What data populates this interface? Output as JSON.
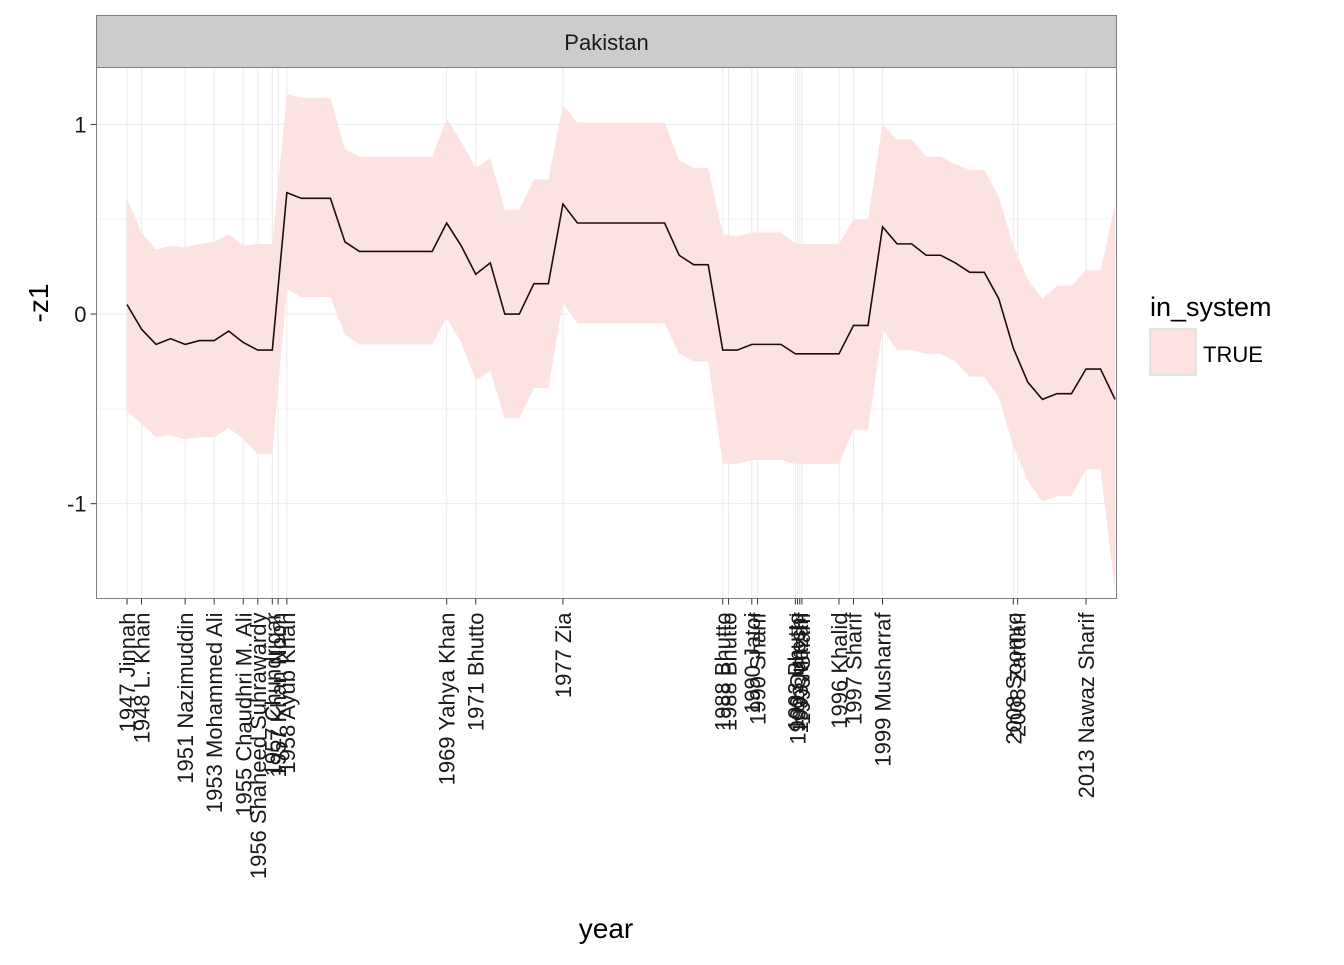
{
  "chart_data": {
    "type": "line",
    "facet_label": "Pakistan",
    "xlabel": "year",
    "ylabel": "-z1",
    "xlim": [
      1944.9,
      2015.1
    ],
    "ylim": [
      -1.5,
      1.3
    ],
    "y_ticks": [
      {
        "value": -1,
        "label": "-1"
      },
      {
        "value": 0,
        "label": "0"
      },
      {
        "value": 1,
        "label": "1"
      }
    ],
    "x_ticks": [
      {
        "year": 1947.0,
        "label": "1947 Jinnah"
      },
      {
        "year": 1948.0,
        "label": "1948 L. Khan"
      },
      {
        "year": 1951.0,
        "label": "1951 Nazimuddin"
      },
      {
        "year": 1953.0,
        "label": "1953 Mohammed Ali"
      },
      {
        "year": 1955.0,
        "label": "1955 Chaudhri M. Ali"
      },
      {
        "year": 1956.0,
        "label": "1956 Shaheed Suhrawardy"
      },
      {
        "year": 1957.0,
        "label": "1957 Chundrigar"
      },
      {
        "year": 1957.4,
        "label": "1957 Khan Noon"
      },
      {
        "year": 1958.0,
        "label": "1958 Ayub Khan"
      },
      {
        "year": 1969.0,
        "label": "1969 Yahya Khan"
      },
      {
        "year": 1971.0,
        "label": "1971 Bhutto"
      },
      {
        "year": 1977.0,
        "label": "1977 Zia"
      },
      {
        "year": 1988.0,
        "label": "1988 Bhutto"
      },
      {
        "year": 1988.4,
        "label": "1988 Bhutto"
      },
      {
        "year": 1990.0,
        "label": "1990 Jatoi"
      },
      {
        "year": 1990.4,
        "label": "1990 Sharif"
      },
      {
        "year": 1993.0,
        "label": "1993 Bhutto"
      },
      {
        "year": 1993.15,
        "label": "1993 Qureshi"
      },
      {
        "year": 1993.3,
        "label": "1993 Mazari"
      },
      {
        "year": 1993.45,
        "label": "1993 Sharif"
      },
      {
        "year": 1996.0,
        "label": "1996 Khalid"
      },
      {
        "year": 1997.0,
        "label": "1997 Sharif"
      },
      {
        "year": 1999.0,
        "label": "1999 Musharraf"
      },
      {
        "year": 2008.0,
        "label": "2008 Soomro"
      },
      {
        "year": 2008.3,
        "label": "2008 Zardari"
      },
      {
        "year": 2013.0,
        "label": "2013 Nawaz Sharif"
      }
    ],
    "series": [
      {
        "x": [
          1947,
          1948,
          1949,
          1950,
          1951,
          1952,
          1953,
          1954,
          1955,
          1956,
          1957,
          1958,
          1959,
          1960,
          1961,
          1962,
          1963,
          1964,
          1965,
          1966,
          1967,
          1968,
          1969,
          1970,
          1971,
          1972,
          1973,
          1974,
          1975,
          1976,
          1977,
          1978,
          1979,
          1980,
          1981,
          1982,
          1983,
          1984,
          1985,
          1986,
          1987,
          1988,
          1989,
          1990,
          1991,
          1992,
          1993,
          1994,
          1995,
          1996,
          1997,
          1998,
          1999,
          2000,
          2001,
          2002,
          2003,
          2004,
          2005,
          2006,
          2007,
          2008,
          2009,
          2010,
          2011,
          2012,
          2013,
          2014,
          2015
        ],
        "y": [
          0.05,
          -0.08,
          -0.16,
          -0.13,
          -0.16,
          -0.14,
          -0.14,
          -0.09,
          -0.15,
          -0.19,
          -0.19,
          0.64,
          0.61,
          0.61,
          0.61,
          0.38,
          0.33,
          0.33,
          0.33,
          0.33,
          0.33,
          0.33,
          0.48,
          0.36,
          0.21,
          0.27,
          0.0,
          0.0,
          0.16,
          0.16,
          0.58,
          0.48,
          0.48,
          0.48,
          0.48,
          0.48,
          0.48,
          0.48,
          0.31,
          0.26,
          0.26,
          -0.19,
          -0.19,
          -0.16,
          -0.16,
          -0.16,
          -0.21,
          -0.21,
          -0.21,
          -0.21,
          -0.06,
          -0.06,
          0.46,
          0.37,
          0.37,
          0.31,
          0.31,
          0.27,
          0.22,
          0.22,
          0.08,
          -0.18,
          -0.36,
          -0.45,
          -0.42,
          -0.42,
          -0.29,
          -0.29,
          -0.45
        ],
        "lower": [
          -0.51,
          -0.58,
          -0.65,
          -0.64,
          -0.66,
          -0.65,
          -0.65,
          -0.6,
          -0.66,
          -0.74,
          -0.74,
          0.13,
          0.09,
          0.09,
          0.09,
          -0.11,
          -0.16,
          -0.16,
          -0.16,
          -0.16,
          -0.16,
          -0.16,
          -0.02,
          -0.15,
          -0.35,
          -0.3,
          -0.55,
          -0.55,
          -0.39,
          -0.39,
          0.06,
          -0.05,
          -0.05,
          -0.05,
          -0.05,
          -0.05,
          -0.05,
          -0.05,
          -0.21,
          -0.25,
          -0.25,
          -0.79,
          -0.79,
          -0.77,
          -0.77,
          -0.77,
          -0.79,
          -0.79,
          -0.79,
          -0.79,
          -0.61,
          -0.61,
          -0.08,
          -0.19,
          -0.19,
          -0.21,
          -0.21,
          -0.25,
          -0.33,
          -0.33,
          -0.44,
          -0.7,
          -0.88,
          -0.99,
          -0.96,
          -0.96,
          -0.82,
          -0.82,
          -1.46
        ],
        "upper": [
          0.61,
          0.43,
          0.34,
          0.36,
          0.35,
          0.37,
          0.38,
          0.42,
          0.36,
          0.37,
          0.37,
          1.16,
          1.14,
          1.14,
          1.14,
          0.87,
          0.83,
          0.83,
          0.83,
          0.83,
          0.83,
          0.83,
          1.03,
          0.91,
          0.77,
          0.82,
          0.55,
          0.55,
          0.71,
          0.71,
          1.1,
          1.01,
          1.01,
          1.01,
          1.01,
          1.01,
          1.01,
          1.01,
          0.81,
          0.77,
          0.77,
          0.42,
          0.41,
          0.43,
          0.43,
          0.43,
          0.37,
          0.37,
          0.37,
          0.37,
          0.5,
          0.5,
          1.0,
          0.92,
          0.92,
          0.83,
          0.83,
          0.79,
          0.76,
          0.76,
          0.62,
          0.36,
          0.18,
          0.08,
          0.15,
          0.15,
          0.23,
          0.23,
          0.58
        ]
      }
    ],
    "legend": {
      "title": "in_system",
      "entries": [
        {
          "label": "TRUE",
          "color": "#fde2e2"
        }
      ],
      "placement": "right"
    },
    "grid": true,
    "colors": {
      "ribbon": "#fde2e2",
      "line": "#1a0f0f",
      "strip": "#cccccc",
      "panel_border": "#7f7f7f",
      "grid_major": "#ebebeb",
      "grid_minor": "#f5f5f5"
    }
  }
}
